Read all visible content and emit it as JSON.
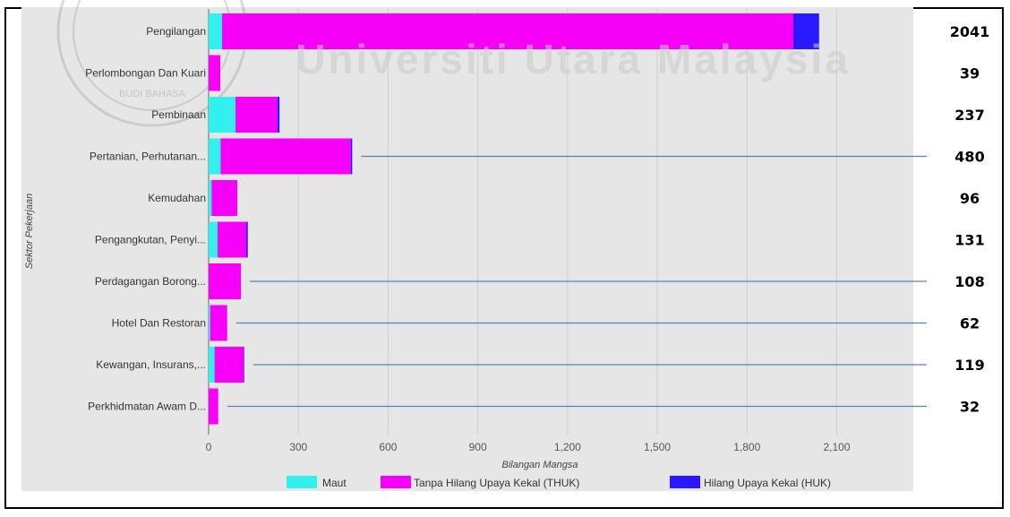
{
  "chart_data": {
    "type": "bar",
    "orientation": "horizontal",
    "stacked": true,
    "categories": [
      "Pengilangan",
      "Perlombongan Dan Kuari",
      "Pembinaan",
      "Pertanian, Perhutanan...",
      "Kemudahan",
      "Pengangkutan, Penyi...",
      "Perdagangan Borong...",
      "Hotel Dan Restoran",
      "Kewangan, Insurans,...",
      "Perkhidmatan Awam D..."
    ],
    "series": [
      {
        "name": "Maut",
        "color": "#33f0f0",
        "values": [
          45,
          0,
          90,
          40,
          10,
          30,
          0,
          5,
          20,
          0
        ]
      },
      {
        "name": "Tanpa Hilang Upaya Kekal (THUK)",
        "color": "#f700f7",
        "values": [
          1910,
          39,
          140,
          435,
          86,
          96,
          108,
          57,
          97,
          32
        ]
      },
      {
        "name": "Hilang Upaya Kekal (HUK)",
        "color": "#2a18ff",
        "values": [
          86,
          0,
          7,
          5,
          0,
          5,
          0,
          0,
          2,
          0
        ]
      }
    ],
    "totals": [
      "2041",
      "39",
      "237",
      "480",
      "96",
      "131",
      "108",
      "62",
      "119",
      "32"
    ],
    "xlabel": "Bilangan Mangsa",
    "ylabel": "Sektor Pekerjaan",
    "xlim": [
      0,
      2350
    ],
    "xticks": [
      0,
      300,
      600,
      900,
      1200,
      1500,
      1800,
      2100
    ],
    "xtick_labels": [
      "0",
      "300",
      "600",
      "900",
      "1,200",
      "1,500",
      "1,800",
      "2,100"
    ],
    "grid": true,
    "legend_position": "bottom"
  },
  "watermark": {
    "text": "Universiti Utara Malaysia",
    "seal_text": "BUDI BAHASA"
  }
}
